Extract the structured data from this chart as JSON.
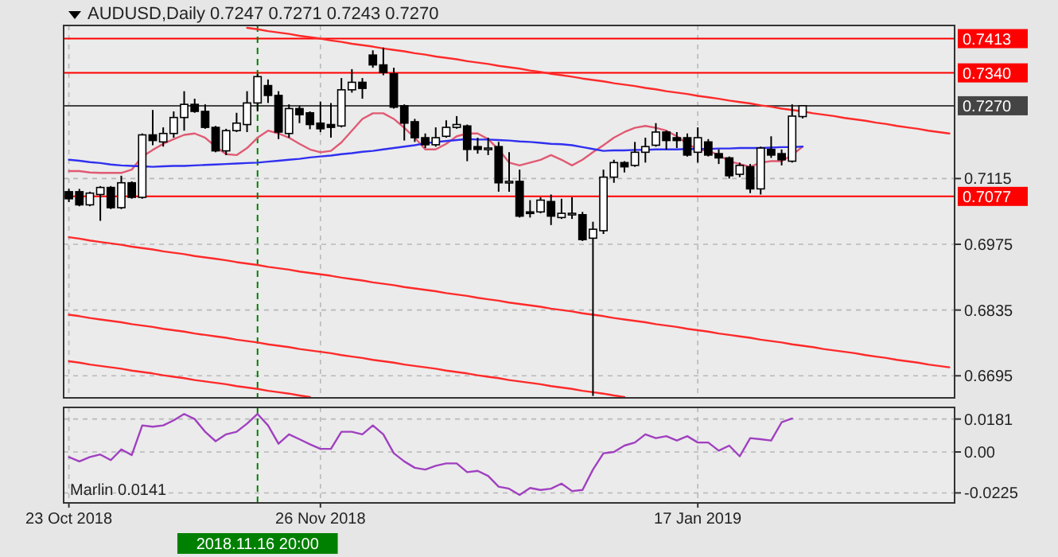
{
  "chart_data": [
    {
      "type": "candlestick",
      "title": "AUDUSD,Daily 0.7247 0.7271 0.7243 0.7270",
      "categories": [
        "23 Oct 2018",
        null,
        null,
        null,
        null,
        null,
        null,
        null,
        null,
        null,
        null,
        null,
        null,
        null,
        null,
        null,
        null,
        null,
        "2018.11.16 20:00",
        null,
        null,
        null,
        null,
        null,
        "26 Nov 2018",
        null,
        null,
        null,
        null,
        null,
        null,
        null,
        null,
        null,
        null,
        null,
        null,
        null,
        null,
        null,
        null,
        null,
        null,
        null,
        null,
        null,
        null,
        null,
        null,
        null,
        null,
        null,
        null,
        null,
        null,
        null,
        null,
        null,
        null,
        null,
        "17 Jan 2019",
        null,
        null,
        null,
        null,
        null,
        null,
        null,
        null,
        null,
        null,
        null,
        null,
        null,
        null,
        null,
        null,
        null,
        null,
        null,
        null,
        null,
        null,
        null,
        null
      ],
      "ohlc": [
        [
          0.7087,
          0.7093,
          0.7065,
          0.7072
        ],
        [
          0.7087,
          0.7093,
          0.7056,
          0.7059
        ],
        [
          0.7059,
          0.7087,
          0.7056,
          0.7084
        ],
        [
          0.7081,
          0.7099,
          0.7025,
          0.7096
        ],
        [
          0.7096,
          0.7099,
          0.705,
          0.7053
        ],
        [
          0.7053,
          0.7121,
          0.705,
          0.7106
        ],
        [
          0.7106,
          0.7109,
          0.7072,
          0.7075
        ],
        [
          0.7075,
          0.7211,
          0.7072,
          0.7208
        ],
        [
          0.7208,
          0.7261,
          0.7186,
          0.7196
        ],
        [
          0.7193,
          0.7224,
          0.7183,
          0.7211
        ],
        [
          0.7211,
          0.7258,
          0.7202,
          0.7245
        ],
        [
          0.7245,
          0.7301,
          0.7217,
          0.7273
        ],
        [
          0.7273,
          0.7285,
          0.7255,
          0.7258
        ],
        [
          0.7258,
          0.7273,
          0.7221,
          0.7224
        ],
        [
          0.7224,
          0.7227,
          0.7171,
          0.7174
        ],
        [
          0.7174,
          0.7221,
          0.7165,
          0.7217
        ],
        [
          0.7217,
          0.7255,
          0.7214,
          0.7233
        ],
        [
          0.723,
          0.7301,
          0.7214,
          0.7276
        ],
        [
          0.7276,
          0.7338,
          0.7258,
          0.7332
        ],
        [
          0.7313,
          0.7326,
          0.7276,
          0.7292
        ],
        [
          0.7292,
          0.7301,
          0.7199,
          0.7214
        ],
        [
          0.7211,
          0.7273,
          0.7202,
          0.7264
        ],
        [
          0.7264,
          0.727,
          0.7233,
          0.7251
        ],
        [
          0.7255,
          0.7258,
          0.722,
          0.723
        ],
        [
          0.7233,
          0.7279,
          0.7214,
          0.7221
        ],
        [
          0.723,
          0.7276,
          0.7202,
          0.7224
        ],
        [
          0.7227,
          0.7329,
          0.7224,
          0.7304
        ],
        [
          0.7304,
          0.7348,
          0.7298,
          0.732
        ],
        [
          0.732,
          0.7329,
          0.7285,
          0.7307
        ],
        [
          0.7378,
          0.7388,
          0.7351,
          0.7357
        ],
        [
          0.7357,
          0.7394,
          0.7335,
          0.7341
        ],
        [
          0.7338,
          0.7351,
          0.7264,
          0.7267
        ],
        [
          0.727,
          0.7273,
          0.7196,
          0.7233
        ],
        [
          0.7236,
          0.7242,
          0.7193,
          0.7202
        ],
        [
          0.7202,
          0.7211,
          0.718,
          0.7187
        ],
        [
          0.7187,
          0.7224,
          0.7183,
          0.7202
        ],
        [
          0.7205,
          0.7239,
          0.7202,
          0.7224
        ],
        [
          0.7224,
          0.7248,
          0.7221,
          0.723
        ],
        [
          0.7227,
          0.723,
          0.7152,
          0.7177
        ],
        [
          0.7183,
          0.7202,
          0.7168,
          0.7177
        ],
        [
          0.718,
          0.7202,
          0.7165,
          0.718
        ],
        [
          0.7183,
          0.7193,
          0.7087,
          0.7106
        ],
        [
          0.7109,
          0.7171,
          0.7087,
          0.7109
        ],
        [
          0.7109,
          0.7134,
          0.7032,
          0.7035
        ],
        [
          0.7044,
          0.7069,
          0.7032,
          0.7041
        ],
        [
          0.7044,
          0.7075,
          0.7041,
          0.7069
        ],
        [
          0.7066,
          0.7081,
          0.7016,
          0.7035
        ],
        [
          0.7032,
          0.7072,
          0.7029,
          0.7041
        ],
        [
          0.7041,
          0.7075,
          0.7029,
          0.7041
        ],
        [
          0.7038,
          0.7044,
          0.6982,
          0.6985
        ],
        [
          0.6988,
          0.7023,
          0.6652,
          0.7007
        ],
        [
          0.7004,
          0.7134,
          0.6997,
          0.7118
        ],
        [
          0.7118,
          0.7155,
          0.7106,
          0.7149
        ],
        [
          0.7149,
          0.7152,
          0.7128,
          0.714
        ],
        [
          0.7143,
          0.7193,
          0.714,
          0.7171
        ],
        [
          0.7171,
          0.7202,
          0.7149,
          0.7183
        ],
        [
          0.7186,
          0.7233,
          0.7183,
          0.7214
        ],
        [
          0.7214,
          0.7217,
          0.7177,
          0.7196
        ],
        [
          0.7202,
          0.7214,
          0.718,
          0.7196
        ],
        [
          0.7202,
          0.7211,
          0.7162,
          0.7165
        ],
        [
          0.7171,
          0.7224,
          0.7149,
          0.7202
        ],
        [
          0.7193,
          0.7199,
          0.7162,
          0.7165
        ],
        [
          0.7168,
          0.7177,
          0.7146,
          0.7159
        ],
        [
          0.7159,
          0.7162,
          0.7115,
          0.7121
        ],
        [
          0.7124,
          0.7149,
          0.7118,
          0.7143
        ],
        [
          0.714,
          0.7146,
          0.7084,
          0.7093
        ],
        [
          0.7093,
          0.7183,
          0.7081,
          0.718
        ],
        [
          0.7177,
          0.7205,
          0.7159,
          0.7165
        ],
        [
          0.7168,
          0.7177,
          0.7143,
          0.7155
        ],
        [
          0.7152,
          0.7273,
          0.7149,
          0.7248
        ],
        [
          0.7247,
          0.7271,
          0.7243,
          0.727
        ],
        null,
        null,
        null,
        null,
        null,
        null,
        null,
        null,
        null,
        null,
        null,
        null,
        null,
        null
      ],
      "series": [
        {
          "type": "line",
          "color": "#e05a72",
          "values": [
            0.7131,
            0.7131,
            0.7128,
            0.7127,
            0.7127,
            0.7127,
            0.7134,
            0.7162,
            0.7176,
            0.7189,
            0.7199,
            0.7208,
            0.7211,
            0.7202,
            0.7183,
            0.7167,
            0.7165,
            0.718,
            0.7202,
            0.7217,
            0.7211,
            0.7202,
            0.7189,
            0.7177,
            0.7171,
            0.7174,
            0.7192,
            0.7217,
            0.7242,
            0.7254,
            0.7254,
            0.7242,
            0.7223,
            0.7202,
            0.7177,
            0.7177,
            0.7189,
            0.7205,
            0.7211,
            0.7211,
            0.7199,
            0.7177,
            0.7149,
            0.7143,
            0.7149,
            0.7155,
            0.7165,
            0.7155,
            0.7143,
            0.7155,
            0.7171,
            0.7186,
            0.7202,
            0.7214,
            0.7223,
            0.7227,
            0.7223,
            0.7217,
            0.7205,
            0.7189,
            0.7177,
            0.7174,
            0.7165,
            0.7152,
            0.7146,
            0.714,
            0.7149,
            0.7152,
            0.7152,
            0.7165,
            0.7183,
            null,
            null,
            null,
            null,
            null,
            null,
            null,
            null,
            null,
            null,
            null,
            null,
            null,
            null
          ]
        },
        {
          "type": "line",
          "color": "#3030f0",
          "values": [
            0.7155,
            0.7153,
            0.715,
            0.7148,
            0.7145,
            0.7143,
            0.7142,
            0.7141,
            0.714,
            0.7141,
            0.7142,
            0.7142,
            0.7143,
            0.7144,
            0.7145,
            0.7146,
            0.7147,
            0.7148,
            0.7149,
            0.7151,
            0.7153,
            0.7155,
            0.7157,
            0.716,
            0.7162,
            0.7164,
            0.7167,
            0.7169,
            0.7172,
            0.7174,
            0.7177,
            0.718,
            0.7183,
            0.7186,
            0.719,
            0.7193,
            0.7195,
            0.7197,
            0.7199,
            0.7198,
            0.7198,
            0.7197,
            0.7196,
            0.7194,
            0.7193,
            0.7191,
            0.7189,
            0.7188,
            0.7186,
            0.7182,
            0.7178,
            0.7174,
            0.7175,
            0.7175,
            0.7176,
            0.7176,
            0.7177,
            0.7177,
            0.7177,
            0.7178,
            0.7178,
            0.7178,
            0.7179,
            0.7179,
            0.718,
            0.718,
            0.718,
            0.7181,
            0.7182,
            0.7182,
            0.7183,
            null,
            null,
            null,
            null,
            null,
            null,
            null,
            null,
            null,
            null,
            null,
            null,
            null,
            null
          ]
        },
        {
          "type": "line",
          "color": "#ff2a2a",
          "values": [
            null,
            null,
            null,
            null,
            null,
            null,
            null,
            null,
            null,
            null,
            null,
            null,
            null,
            null,
            null,
            null,
            null,
            0.7436,
            0.7433,
            0.7429,
            0.7426,
            0.7423,
            0.7419,
            0.7416,
            0.7413,
            0.7409,
            0.7406,
            0.7402,
            0.7399,
            0.7396,
            0.7392,
            0.7389,
            0.7386,
            0.7382,
            0.7379,
            0.7375,
            0.7372,
            0.7369,
            0.7365,
            0.7362,
            0.7359,
            0.7355,
            0.7352,
            0.7349,
            0.7345,
            0.7342,
            0.7338,
            0.7335,
            0.7332,
            0.7328,
            0.7325,
            0.7322,
            0.7318,
            0.7315,
            0.7312,
            0.7308,
            0.7305,
            0.7301,
            0.7298,
            0.7295,
            0.7291,
            0.7288,
            0.7285,
            0.7281,
            0.7278,
            0.7275,
            0.7271,
            0.7268,
            0.7264,
            0.7261,
            0.7258,
            0.7254,
            0.7251,
            0.7248,
            0.7244,
            0.7241,
            0.7238,
            0.7234,
            0.7231,
            0.7227,
            0.7224,
            0.7221,
            0.7217,
            0.7214,
            0.7211
          ]
        },
        {
          "type": "line",
          "color": "#ff2a2a",
          "values": [
            0.699,
            0.6987,
            0.6983,
            0.698,
            0.6977,
            0.6974,
            0.697,
            0.6967,
            0.6964,
            0.696,
            0.6957,
            0.6954,
            0.695,
            0.6947,
            0.6944,
            0.6941,
            0.6937,
            0.6934,
            0.6931,
            0.6927,
            0.6924,
            0.6921,
            0.6917,
            0.6914,
            0.6911,
            0.6908,
            0.6904,
            0.6901,
            0.6898,
            0.6894,
            0.6891,
            0.6888,
            0.6884,
            0.6881,
            0.6878,
            0.6875,
            0.6871,
            0.6868,
            0.6865,
            0.6861,
            0.6858,
            0.6855,
            0.6851,
            0.6848,
            0.6845,
            0.6842,
            0.6838,
            0.6835,
            0.6832,
            0.6828,
            0.6825,
            0.6822,
            0.6818,
            0.6815,
            0.6812,
            0.6809,
            0.6805,
            0.6802,
            0.6799,
            0.6795,
            0.6792,
            0.6789,
            0.6785,
            0.6782,
            0.6779,
            0.6776,
            0.6772,
            0.6769,
            0.6766,
            0.6762,
            0.6759,
            0.6756,
            0.6752,
            0.6749,
            0.6746,
            0.6743,
            0.6739,
            0.6736,
            0.6733,
            0.6729,
            0.6726,
            0.6723,
            0.6719,
            0.6716,
            0.6713
          ]
        },
        {
          "type": "line",
          "color": "#ff2a2a",
          "values": [
            0.6825,
            0.6822,
            0.6818,
            0.6815,
            0.6812,
            0.6809,
            0.6805,
            0.6802,
            0.6799,
            0.6795,
            0.6792,
            0.6789,
            0.6785,
            0.6782,
            0.6779,
            0.6776,
            0.6772,
            0.6769,
            0.6766,
            0.6762,
            0.6759,
            0.6756,
            0.6752,
            0.6749,
            0.6746,
            0.6743,
            0.6739,
            0.6736,
            0.6733,
            0.6729,
            0.6726,
            0.6723,
            0.6719,
            0.6716,
            0.6713,
            0.671,
            0.6706,
            0.6703,
            0.67,
            0.6696,
            0.6693,
            0.669,
            0.6686,
            0.6683,
            0.668,
            0.6677,
            0.6673,
            0.667,
            0.6667,
            0.6663,
            0.666,
            0.6657,
            0.6653,
            0.665,
            null,
            null,
            null,
            null,
            null,
            null,
            null,
            null,
            null,
            null,
            null,
            null,
            null,
            null,
            null,
            null,
            null,
            null,
            null,
            null,
            null,
            null,
            null,
            null,
            null,
            null,
            null,
            null,
            null,
            null,
            null
          ]
        },
        {
          "type": "line",
          "color": "#ff2a2a",
          "values": [
            0.6726,
            0.6723,
            0.6719,
            0.6716,
            0.6713,
            0.671,
            0.6706,
            0.6703,
            0.67,
            0.6696,
            0.6693,
            0.669,
            0.6686,
            0.6683,
            0.668,
            0.6677,
            0.6673,
            0.667,
            0.6667,
            0.6663,
            0.666,
            0.6657,
            0.6653,
            0.665,
            null,
            null,
            null,
            null,
            null,
            null,
            null,
            null,
            null,
            null,
            null,
            null,
            null,
            null,
            null,
            null,
            null,
            null,
            null,
            null,
            null,
            null,
            null,
            null,
            null,
            null,
            null,
            null,
            null,
            null,
            null,
            null,
            null,
            null,
            null,
            null,
            null,
            null,
            null,
            null,
            null,
            null,
            null,
            null,
            null,
            null,
            null,
            null,
            null,
            null,
            null,
            null,
            null,
            null,
            null,
            null,
            null,
            null,
            null,
            null,
            null
          ]
        }
      ],
      "ylim": [
        0.6648,
        0.7441
      ],
      "yticks": [
        0.7115,
        0.6975,
        0.6835,
        0.6695
      ],
      "grid": true,
      "tick_labels": "y",
      "ref_lines": [
        {
          "axis": "y",
          "value": 0.7413,
          "label": "0.7413",
          "color": "#ff0000"
        },
        {
          "axis": "y",
          "value": 0.734,
          "label": "0.7340",
          "color": "#ff0000"
        },
        {
          "axis": "y",
          "value": 0.727,
          "label": "0.7270",
          "color": "#444444"
        },
        {
          "axis": "y",
          "value": 0.7077,
          "label": "0.7077",
          "color": "#ff0000"
        },
        {
          "axis": "x",
          "value": "2018.11.16 20:00",
          "color": "#008000",
          "line_style": "dashed"
        }
      ]
    },
    {
      "type": "line",
      "title": "Marlin 0.0141",
      "categories": [
        "23 Oct 2018",
        null,
        null,
        null,
        null,
        null,
        null,
        null,
        null,
        null,
        null,
        null,
        null,
        null,
        null,
        null,
        null,
        null,
        "2018.11.16 20:00",
        null,
        null,
        null,
        null,
        null,
        "26 Nov 2018",
        null,
        null,
        null,
        null,
        null,
        null,
        null,
        null,
        null,
        null,
        null,
        null,
        null,
        null,
        null,
        null,
        null,
        null,
        null,
        null,
        null,
        null,
        null,
        null,
        null,
        null,
        null,
        null,
        null,
        null,
        null,
        null,
        null,
        null,
        null,
        "17 Jan 2019",
        null,
        null,
        null,
        null,
        null,
        null,
        null,
        null,
        null,
        null,
        null,
        null,
        null,
        null,
        null,
        null,
        null,
        null,
        null,
        null,
        null,
        null,
        null,
        null
      ],
      "series": [
        {
          "color": "#a040c0",
          "values": [
            -0.0028,
            -0.0052,
            -0.0028,
            -0.0014,
            -0.0045,
            0.0014,
            -0.0017,
            0.0146,
            0.0139,
            0.0146,
            0.0174,
            0.0209,
            0.0181,
            0.0111,
            0.0059,
            0.0097,
            0.0111,
            0.0156,
            0.0209,
            0.0146,
            0.0045,
            0.0097,
            0.007,
            0.0042,
            0.0017,
            0.0017,
            0.0111,
            0.0111,
            0.0097,
            0.0146,
            0.0097,
            -0.0007,
            -0.0052,
            -0.0087,
            -0.0097,
            -0.0076,
            -0.0063,
            -0.0063,
            -0.0111,
            -0.0104,
            -0.0132,
            -0.0191,
            -0.0202,
            -0.0236,
            -0.0198,
            -0.0209,
            -0.0202,
            -0.0174,
            -0.0215,
            -0.0209,
            -0.0097,
            -0.0007,
            0,
            0.0035,
            0.0052,
            0.0097,
            0.0076,
            0.0087,
            0.0063,
            0.0087,
            0.0052,
            0.0052,
            0.0007,
            0.0035,
            -0.0024,
            0.0076,
            0.007,
            0.0063,
            0.0163,
            0.0184,
            null,
            null,
            null,
            null,
            null,
            null,
            null,
            null,
            null,
            null,
            null,
            null,
            null,
            null,
            null
          ]
        }
      ],
      "ylim": [
        -0.028,
        0.0245
      ],
      "yticks": [
        0.0181,
        {
          "value": 0,
          "label": "0.00"
        },
        -0.0225
      ],
      "grid": true,
      "ref_lines": [
        {
          "axis": "x",
          "value": "2018.11.16 20:00",
          "color": "#008000",
          "line_style": "dashed"
        }
      ]
    }
  ]
}
